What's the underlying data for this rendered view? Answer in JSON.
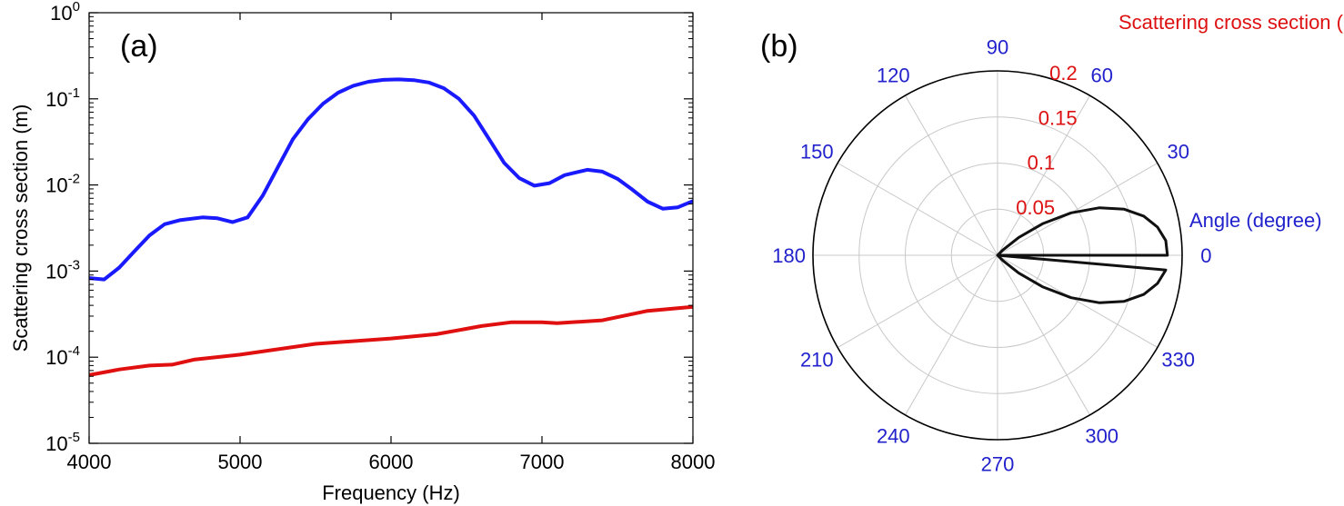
{
  "chart_data": [
    {
      "type": "line",
      "panel_label": "(a)",
      "xlabel": "Frequency (Hz)",
      "ylabel": "Scattering  cross section (m)",
      "xlim": [
        4000,
        8000
      ],
      "ylim": [
        1e-05,
        1
      ],
      "yscale": "log",
      "x_ticks": [
        4000,
        5000,
        6000,
        7000,
        8000
      ],
      "y_ticks": [
        {
          "value": 1e-05,
          "base": "10",
          "exp": "-5"
        },
        {
          "value": 0.0001,
          "base": "10",
          "exp": "-4"
        },
        {
          "value": 0.001,
          "base": "10",
          "exp": "-3"
        },
        {
          "value": 0.01,
          "base": "10",
          "exp": "-2"
        },
        {
          "value": 0.1,
          "base": "10",
          "exp": "-1"
        },
        {
          "value": 1,
          "base": "10",
          "exp": "0"
        }
      ],
      "grid": false,
      "series": [
        {
          "color": "#1a1aff",
          "points": [
            [
              4000,
              0.00083
            ],
            [
              4100,
              0.0008
            ],
            [
              4200,
              0.0011
            ],
            [
              4300,
              0.0017
            ],
            [
              4400,
              0.0026
            ],
            [
              4500,
              0.0035
            ],
            [
              4600,
              0.0039
            ],
            [
              4750,
              0.0042
            ],
            [
              4850,
              0.0041
            ],
            [
              4950,
              0.0037
            ],
            [
              5050,
              0.0042
            ],
            [
              5150,
              0.0075
            ],
            [
              5250,
              0.016
            ],
            [
              5350,
              0.034
            ],
            [
              5450,
              0.058
            ],
            [
              5550,
              0.088
            ],
            [
              5650,
              0.118
            ],
            [
              5750,
              0.142
            ],
            [
              5850,
              0.158
            ],
            [
              5950,
              0.166
            ],
            [
              6050,
              0.168
            ],
            [
              6150,
              0.165
            ],
            [
              6250,
              0.155
            ],
            [
              6350,
              0.133
            ],
            [
              6450,
              0.1
            ],
            [
              6550,
              0.064
            ],
            [
              6650,
              0.034
            ],
            [
              6750,
              0.018
            ],
            [
              6850,
              0.012
            ],
            [
              6950,
              0.0098
            ],
            [
              7050,
              0.0105
            ],
            [
              7150,
              0.013
            ],
            [
              7300,
              0.015
            ],
            [
              7400,
              0.0143
            ],
            [
              7500,
              0.0118
            ],
            [
              7600,
              0.0088
            ],
            [
              7700,
              0.0064
            ],
            [
              7800,
              0.0053
            ],
            [
              7900,
              0.0055
            ],
            [
              8000,
              0.0065
            ]
          ]
        },
        {
          "color": "#e01010",
          "points": [
            [
              4000,
              6.2e-05
            ],
            [
              4200,
              7.2e-05
            ],
            [
              4400,
              8e-05
            ],
            [
              4550,
              8.2e-05
            ],
            [
              4700,
              9.4e-05
            ],
            [
              5000,
              0.000107
            ],
            [
              5500,
              0.000143
            ],
            [
              6000,
              0.000165
            ],
            [
              6300,
              0.000185
            ],
            [
              6600,
              0.00023
            ],
            [
              6800,
              0.000255
            ],
            [
              7000,
              0.000255
            ],
            [
              7100,
              0.000248
            ],
            [
              7400,
              0.000268
            ],
            [
              7700,
              0.000345
            ],
            [
              8000,
              0.000385
            ]
          ]
        }
      ]
    },
    {
      "type": "polar",
      "panel_label": "(b)",
      "radial_label": "Scattering  cross section (m)",
      "angle_label": "Angle (degree)",
      "rmax": 0.2,
      "r_ticks": [
        {
          "value": 0.05,
          "label": "0.05"
        },
        {
          "value": 0.1,
          "label": "0.1"
        },
        {
          "value": 0.15,
          "label": "0.15"
        },
        {
          "value": 0.2,
          "label": "0.2"
        }
      ],
      "angle_ticks": [
        "0",
        "30",
        "60",
        "90",
        "120",
        "150",
        "180",
        "210",
        "240",
        "270",
        "300",
        "330"
      ],
      "series": [
        {
          "color": "#111111",
          "points": [
            [
              0,
              0.184
            ],
            [
              5,
              0.183
            ],
            [
              10,
              0.176
            ],
            [
              15,
              0.164
            ],
            [
              20,
              0.146
            ],
            [
              25,
              0.122
            ],
            [
              30,
              0.092
            ],
            [
              35,
              0.06
            ],
            [
              40,
              0.03
            ],
            [
              45,
              0.008
            ],
            [
              50,
              0.0
            ]
          ],
          "symmetric": true
        }
      ]
    }
  ]
}
